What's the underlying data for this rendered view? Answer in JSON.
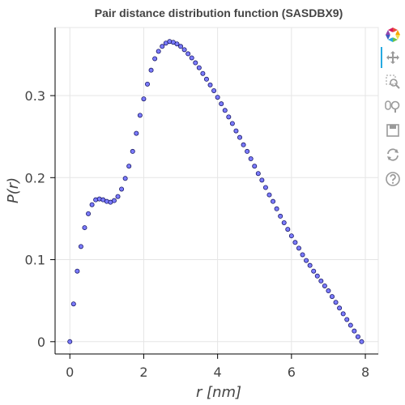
{
  "chart_data": {
    "type": "scatter",
    "title": "Pair distance distribution function (SASDBX9)",
    "xlabel": "r [nm]",
    "ylabel": "P(r)",
    "xlim": [
      -0.4,
      8.35
    ],
    "ylim": [
      -0.015,
      0.383
    ],
    "x_ticks": [
      0,
      2,
      4,
      6,
      8
    ],
    "y_ticks": [
      0,
      0.1,
      0.2,
      0.3
    ],
    "x_tick_labels": [
      "0",
      "2",
      "4",
      "6",
      "8"
    ],
    "y_tick_labels": [
      "0",
      "0.1",
      "0.2",
      "0.3"
    ],
    "grid": true,
    "marker_color": "#7b7bff",
    "marker_edge": "#1a1a66",
    "x_points": [
      0.0,
      0.1,
      0.2,
      0.3,
      0.4,
      0.5,
      0.6,
      0.7,
      0.8,
      0.9,
      1.0,
      1.1,
      1.2,
      1.3,
      1.4,
      1.5,
      1.6,
      1.7,
      1.8,
      1.9,
      2.0,
      2.1,
      2.2,
      2.3,
      2.4,
      2.5,
      2.6,
      2.7,
      2.8,
      2.9,
      3.0,
      3.1,
      3.2,
      3.3,
      3.4,
      3.5,
      3.6,
      3.7,
      3.8,
      3.9,
      4.0,
      4.1,
      4.2,
      4.3,
      4.4,
      4.5,
      4.6,
      4.7,
      4.8,
      4.9,
      5.0,
      5.1,
      5.2,
      5.3,
      5.4,
      5.5,
      5.6,
      5.7,
      5.8,
      5.9,
      6.0,
      6.1,
      6.2,
      6.3,
      6.4,
      6.5,
      6.6,
      6.7,
      6.8,
      6.9,
      7.0,
      7.1,
      7.2,
      7.3,
      7.4,
      7.5,
      7.6,
      7.7,
      7.8,
      7.9
    ],
    "y_points": [
      0.0,
      0.046,
      0.086,
      0.116,
      0.139,
      0.156,
      0.167,
      0.173,
      0.174,
      0.173,
      0.171,
      0.17,
      0.172,
      0.177,
      0.186,
      0.199,
      0.214,
      0.232,
      0.254,
      0.276,
      0.296,
      0.314,
      0.331,
      0.345,
      0.354,
      0.36,
      0.364,
      0.366,
      0.365,
      0.363,
      0.36,
      0.356,
      0.351,
      0.346,
      0.34,
      0.334,
      0.327,
      0.32,
      0.313,
      0.306,
      0.298,
      0.29,
      0.282,
      0.274,
      0.266,
      0.257,
      0.249,
      0.24,
      0.232,
      0.223,
      0.214,
      0.205,
      0.197,
      0.188,
      0.179,
      0.171,
      0.162,
      0.153,
      0.145,
      0.137,
      0.129,
      0.121,
      0.114,
      0.106,
      0.099,
      0.093,
      0.086,
      0.08,
      0.074,
      0.068,
      0.062,
      0.055,
      0.048,
      0.041,
      0.034,
      0.027,
      0.02,
      0.013,
      0.006,
      0.0
    ]
  },
  "toolbar": {
    "logo": "bokeh-logo-icon",
    "tools": [
      "pan-icon",
      "box-zoom-icon",
      "wheel-zoom-icon",
      "save-icon",
      "reset-icon",
      "help-icon"
    ],
    "active_color": "#26aae1"
  }
}
